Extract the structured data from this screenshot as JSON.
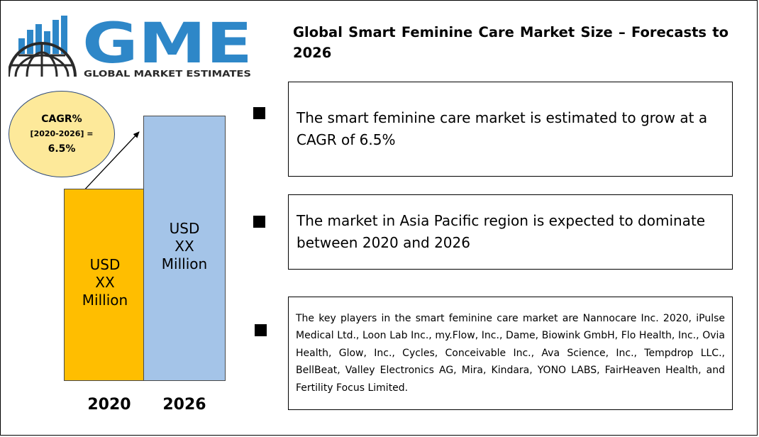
{
  "logo": {
    "letters": "GME",
    "tagline": "GLOBAL MARKET ESTIMATES",
    "color_blue": "#2e87c8",
    "color_dark": "#2a2a2a"
  },
  "title": "Global Smart Feminine Care Market Size – Forecasts to 2026",
  "cagr": {
    "line1": "CAGR%",
    "line2": "[2020-2026] =",
    "line3": "6.5%",
    "fill": "#fde99a"
  },
  "chart_data": {
    "type": "bar",
    "categories": [
      "2020",
      "2026"
    ],
    "values": [
      1,
      1.38
    ],
    "value_labels": [
      [
        "USD",
        "XX",
        "Million"
      ],
      [
        "USD",
        "XX",
        "Million"
      ]
    ],
    "colors": [
      "#ffbe00",
      "#a4c4e8"
    ],
    "title": "",
    "xlabel": "",
    "ylabel": "",
    "grid": false
  },
  "points": [
    {
      "text": "The smart feminine care market is estimated to grow at a CAGR of 6.5%"
    },
    {
      "text": "The market in Asia Pacific region is expected to dominate between 2020 and 2026"
    },
    {
      "text": "The key players in the smart feminine care market are Nannocare Inc. 2020, iPulse Medical Ltd., Loon Lab Inc., my.Flow, Inc., Dame, Biowink GmbH, Flo Health, Inc., Ovia Health, Glow, Inc., Cycles, Conceivable Inc., Ava Science, Inc., Tempdrop LLC., BellBeat, Valley Electronics AG, Mira, Kindara, YONO LABS, FairHeaven Health, and Fertility Focus Limited."
    }
  ]
}
